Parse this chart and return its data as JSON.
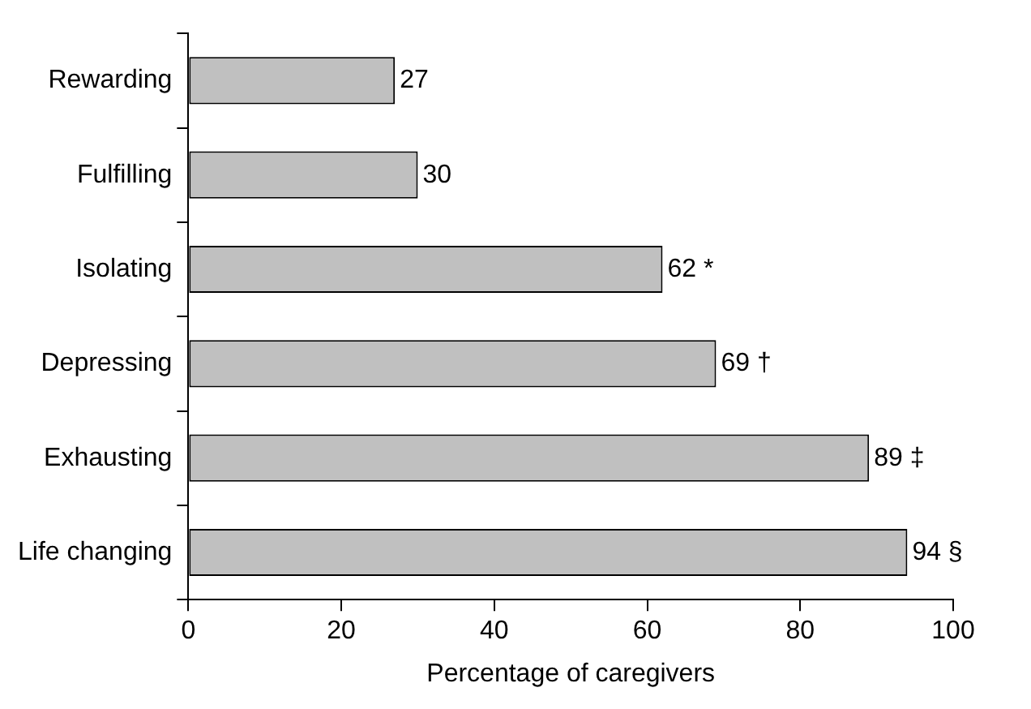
{
  "chart_data": {
    "type": "bar",
    "orientation": "horizontal",
    "xlabel": "Percentage of caregivers",
    "categories": [
      "Rewarding",
      "Fulfilling",
      "Isolating",
      "Depressing",
      "Exhausting",
      "Life changing"
    ],
    "values": [
      27,
      30,
      62,
      69,
      89,
      94
    ],
    "value_labels": [
      "27",
      "30",
      "62 *",
      "69 †",
      "89 ‡",
      "94 §"
    ],
    "color": "#c0c0c0",
    "xlim": [
      0,
      100
    ],
    "xticks": [
      0,
      20,
      40,
      60,
      80,
      100
    ],
    "grid": false,
    "legend": false
  }
}
